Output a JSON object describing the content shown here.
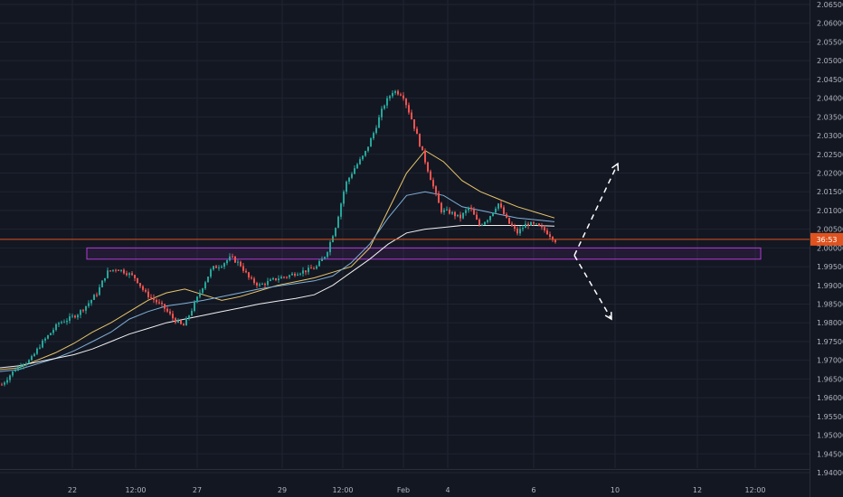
{
  "chart_data": {
    "type": "candlestick",
    "title": "",
    "price_axis": {
      "ticks": [
        "2.06500",
        "2.06000",
        "2.05500",
        "2.05000",
        "2.04500",
        "2.04000",
        "2.03500",
        "2.03000",
        "2.02500",
        "2.02000",
        "2.01500",
        "2.01000",
        "2.00500",
        "2.00000",
        "1.99500",
        "1.99000",
        "1.98500",
        "1.98000",
        "1.97500",
        "1.97000",
        "1.96500",
        "1.96000",
        "1.95500",
        "1.95000",
        "1.94500",
        "1.94000"
      ],
      "range": [
        1.9385,
        2.067
      ]
    },
    "time_axis": {
      "ticks": [
        "22",
        "12:00",
        "27",
        "29",
        "12:00",
        "Feb",
        "4",
        "6",
        "10",
        "12",
        "12:00"
      ]
    },
    "current_price_badge": "36:53",
    "current_price": 2.0023,
    "support_zone": {
      "top": 2.0,
      "bottom": 1.997
    },
    "projection_arrows": [
      {
        "direction": "up",
        "target_price": 2.0225
      },
      {
        "direction": "down",
        "target_price": 1.981
      }
    ],
    "series": [
      {
        "name": "",
        "role": "price_path",
        "color": "#26a69a",
        "values": [
          1.9635,
          1.9665,
          1.969,
          1.97,
          1.974,
          1.977,
          1.98,
          1.981,
          1.9825,
          1.985,
          1.988,
          1.9935,
          1.9945,
          1.9935,
          1.992,
          1.988,
          1.986,
          1.984,
          1.981,
          1.979,
          1.984,
          1.9895,
          1.9945,
          1.9955,
          1.9975,
          1.9955,
          1.9915,
          1.99,
          1.991,
          1.992,
          1.9925,
          1.9935,
          1.994,
          1.995,
          1.9985,
          2.006,
          2.017,
          2.0215,
          2.025,
          2.031,
          2.038,
          2.042,
          2.041,
          2.034,
          2.026,
          2.018,
          2.01,
          2.0095,
          2.008,
          2.011,
          2.006,
          2.008,
          2.012,
          2.007,
          2.004,
          2.0065,
          2.006,
          2.0045,
          2.002
        ]
      },
      {
        "name": "",
        "role": "ma_fast",
        "color": "#e8c66a",
        "values": [
          1.9675,
          1.968,
          1.97,
          1.972,
          1.9745,
          1.9775,
          1.98,
          1.983,
          1.986,
          1.988,
          1.989,
          1.9875,
          1.986,
          1.987,
          1.9885,
          1.99,
          1.991,
          1.992,
          1.9935,
          1.995,
          2.0,
          2.01,
          2.02,
          2.026,
          2.023,
          2.018,
          2.015,
          2.013,
          2.011,
          2.0095,
          2.008
        ]
      },
      {
        "name": "",
        "role": "ma_mid",
        "color": "#7fb0d8",
        "values": [
          1.967,
          1.9675,
          1.969,
          1.9705,
          1.9725,
          1.975,
          1.9775,
          1.981,
          1.983,
          1.9845,
          1.9852,
          1.986,
          1.987,
          1.988,
          1.989,
          1.9898,
          1.9905,
          1.9912,
          1.9925,
          1.996,
          2.001,
          2.008,
          2.014,
          2.015,
          2.014,
          2.011,
          2.01,
          2.009,
          2.008,
          2.0075,
          2.007
        ]
      },
      {
        "name": "",
        "role": "ma_slow",
        "color": "#f0f0f0",
        "values": [
          1.968,
          1.9685,
          1.9695,
          1.9705,
          1.9715,
          1.973,
          1.975,
          1.977,
          1.9785,
          1.98,
          1.981,
          1.982,
          1.983,
          1.984,
          1.985,
          1.9858,
          1.9865,
          1.9875,
          1.99,
          1.9935,
          1.997,
          2.001,
          2.004,
          2.005,
          2.0055,
          2.006,
          2.006,
          2.006,
          2.006,
          2.006,
          2.0058
        ]
      }
    ],
    "grid": true,
    "colors": {
      "background": "#131722",
      "grid": "#1f2433",
      "up": "#26a69a",
      "down": "#ef5350",
      "zone": "#b13bd6",
      "price_line": "#e0531f",
      "arrows": "#ffffff"
    }
  }
}
